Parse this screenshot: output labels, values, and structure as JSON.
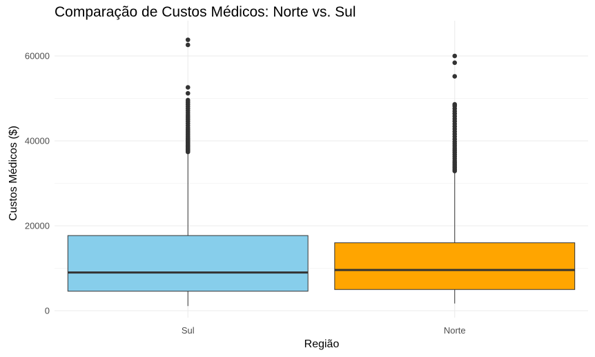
{
  "chart_data": {
    "type": "box",
    "title": "Comparação de Custos Médicos: Norte vs. Sul",
    "xlabel": "Região",
    "ylabel": "Custos Médicos ($)",
    "ylim": [
      -1500,
      67000
    ],
    "yticks": [
      0,
      20000,
      40000,
      60000
    ],
    "ytick_labels": [
      "0",
      "20000",
      "40000",
      "60000"
    ],
    "categories": [
      "Sul",
      "Norte"
    ],
    "grid": true,
    "boxes": [
      {
        "category": "Sul",
        "color": "#87CEEB",
        "min": 1100,
        "q1": 4600,
        "median": 9000,
        "q3": 17700,
        "whisker_high": 37300,
        "outliers": [
          37400,
          37600,
          37800,
          38000,
          38200,
          38400,
          38600,
          38800,
          39000,
          39200,
          39500,
          39800,
          40100,
          40400,
          40700,
          41100,
          41500,
          41900,
          42300,
          42700,
          43100,
          43600,
          44100,
          44600,
          45100,
          45600,
          46100,
          46600,
          47100,
          47600,
          48100,
          48600,
          49100,
          49600,
          51200,
          52600,
          62600,
          63800
        ]
      },
      {
        "category": "Norte",
        "color": "#FFA500",
        "min": 1700,
        "q1": 5000,
        "median": 9600,
        "q3": 16000,
        "whisker_high": 32800,
        "outliers": [
          32900,
          33300,
          33700,
          34100,
          34500,
          34900,
          35300,
          35800,
          36300,
          36800,
          37300,
          37800,
          38300,
          38800,
          39300,
          39800,
          40400,
          41000,
          41600,
          42200,
          42800,
          43400,
          44000,
          44600,
          45200,
          45800,
          46400,
          47000,
          47600,
          48200,
          48600,
          55200,
          58400,
          60000
        ]
      }
    ]
  }
}
